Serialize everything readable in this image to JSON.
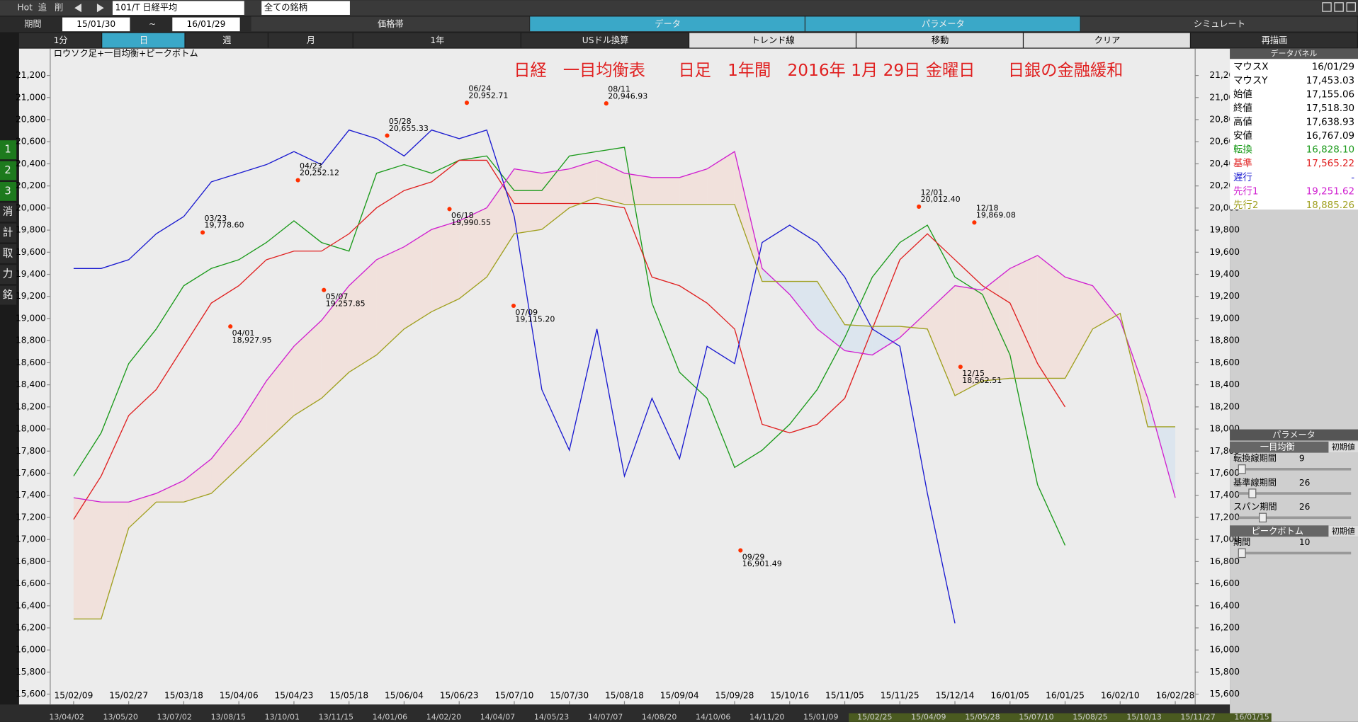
{
  "toolbar": {
    "hot": "Hot",
    "add": "追",
    "del": "削",
    "code": "101/T 日経平均",
    "group": "全ての銘柄",
    "period_label": "期間",
    "from": "15/01/30",
    "tilde": "~",
    "to": "16/01/29",
    "tabs": [
      "価格帯",
      "データ",
      "パラメータ",
      "シミュレート"
    ],
    "modes": [
      "1分",
      "日",
      "週",
      "月",
      "1年",
      "USドル換算",
      "トレンド線",
      "移動",
      "クリア",
      "再描画"
    ]
  },
  "side_tools": [
    "1",
    "2",
    "3",
    "消",
    "計",
    "取",
    "力",
    "銘"
  ],
  "chart_data": {
    "type": "line",
    "title": "日経　一目均衡表　　日足　1年間　2016年 1月 29日 金曜日　　日銀の金融緩和",
    "subtitle": "ロウソク足+一目均衡+ピークボトム",
    "categories": [
      "15/02/09",
      null,
      "15/02/27",
      null,
      "15/03/18",
      null,
      "15/04/06",
      null,
      "15/04/23",
      null,
      "15/05/18",
      null,
      "15/06/04",
      null,
      "15/06/23",
      null,
      "15/07/10",
      null,
      "15/07/30",
      null,
      "15/08/18",
      null,
      "15/09/04",
      null,
      "15/09/28",
      null,
      "15/10/16",
      null,
      "15/11/05",
      null,
      "15/11/25",
      null,
      "15/12/14",
      null,
      "16/01/05",
      null,
      "16/01/25",
      null,
      "16/02/10",
      null,
      "16/02/28"
    ],
    "ylim": [
      15506,
      21443
    ],
    "yticks": [
      {
        "value": 15600,
        "label": "15,600"
      },
      {
        "value": 15800,
        "label": "15,800"
      },
      {
        "value": 16000,
        "label": "16,000"
      },
      {
        "value": 16200,
        "label": "16,200"
      },
      {
        "value": 16400,
        "label": "16,400"
      },
      {
        "value": 16600,
        "label": "16,600"
      },
      {
        "value": 16800,
        "label": "16,800"
      },
      {
        "value": 17000,
        "label": "17,000"
      },
      {
        "value": 17200,
        "label": "17,200"
      },
      {
        "value": 17400,
        "label": "17,400"
      },
      {
        "value": 17600,
        "label": "17,600"
      },
      {
        "value": 17800,
        "label": "17,800"
      },
      {
        "value": 18000,
        "label": "18,000"
      },
      {
        "value": 18200,
        "label": "18,200"
      },
      {
        "value": 18400,
        "label": "18,400"
      },
      {
        "value": 18600,
        "label": "18,600"
      },
      {
        "value": 18800,
        "label": "18,800"
      },
      {
        "value": 19000,
        "label": "19,000"
      },
      {
        "value": 19200,
        "label": "19,200"
      },
      {
        "value": 19400,
        "label": "19,400"
      },
      {
        "value": 19600,
        "label": "19,600"
      },
      {
        "value": 19800,
        "label": "19,800"
      },
      {
        "value": 20000,
        "label": "20,000"
      },
      {
        "value": 20200,
        "label": "20,200"
      },
      {
        "value": 20400,
        "label": "20,400"
      },
      {
        "value": 20600,
        "label": "20,600"
      },
      {
        "value": 20800,
        "label": "20,800"
      },
      {
        "value": 21000,
        "label": "21,000"
      },
      {
        "value": 21200,
        "label": "21,200"
      }
    ],
    "series": [
      {
        "name": "転換",
        "color": "#1a9a1a",
        "values": [
          17574,
          17965,
          18592,
          18905,
          19297,
          19453,
          19532,
          19688,
          19884,
          19688,
          19610,
          20315,
          20393,
          20315,
          20432,
          20471,
          20158,
          20158,
          20471,
          20511,
          20550,
          19140,
          18514,
          18278,
          17652,
          17808,
          18043,
          18357,
          18827,
          19375,
          19688,
          19845,
          19375,
          19218,
          18670,
          17495,
          16947,
          null,
          null,
          null,
          null
        ]
      },
      {
        "name": "基準",
        "color": "#e02020",
        "values": [
          17182,
          17574,
          18122,
          18357,
          18749,
          19140,
          19297,
          19532,
          19610,
          19610,
          19767,
          20002,
          20158,
          20237,
          20432,
          20432,
          20041,
          20041,
          20041,
          20041,
          20002,
          19375,
          19297,
          19140,
          18905,
          18043,
          17965,
          18043,
          18278,
          18905,
          19532,
          19767,
          19532,
          19297,
          19140,
          18592,
          18200,
          null,
          null,
          null,
          null
        ]
      },
      {
        "name": "遅行",
        "color": "#1a1ad0",
        "values": [
          19453,
          19453,
          19532,
          19767,
          19923,
          20237,
          20315,
          20393,
          20511,
          20393,
          20706,
          20628,
          20471,
          20706,
          20628,
          20706,
          19923,
          18357,
          17808,
          18905,
          17574,
          18278,
          17730,
          18749,
          18592,
          19688,
          19845,
          19688,
          19375,
          18905,
          18749,
          17417,
          16242,
          null,
          null,
          null,
          null,
          null,
          null,
          null,
          null
        ]
      },
      {
        "name": "先行1",
        "color": "#d020d0",
        "values": [
          17378,
          17339,
          17339,
          17417,
          17534,
          17730,
          18043,
          18435,
          18749,
          18983,
          19297,
          19532,
          19649,
          19806,
          19884,
          20002,
          20354,
          20315,
          20354,
          20432,
          20315,
          20276,
          20276,
          20354,
          20511,
          19453,
          19218,
          18905,
          18709,
          18670,
          18827,
          19062,
          19297,
          19257,
          19453,
          19571,
          19375,
          19297,
          18983,
          18278,
          17378
        ]
      },
      {
        "name": "先行2",
        "color": "#a0a020",
        "values": [
          16281,
          16281,
          17104,
          17339,
          17339,
          17417,
          17652,
          17887,
          18122,
          18278,
          18514,
          18670,
          18905,
          19062,
          19179,
          19375,
          19767,
          19806,
          20002,
          20096,
          20033,
          20033,
          20033,
          20033,
          20033,
          19336,
          19336,
          19336,
          18944,
          18929,
          18929,
          18905,
          18302,
          18435,
          18459,
          18459,
          18459,
          18905,
          19047,
          18020,
          18020
        ]
      }
    ],
    "annotations": [
      {
        "date": "03/23",
        "value": 19778.6,
        "label": "19,778.60"
      },
      {
        "date": "04/01",
        "value": 18927.95,
        "label": "18,927.95"
      },
      {
        "date": "04/23",
        "value": 20252.12,
        "label": "20,252.12"
      },
      {
        "date": "05/07",
        "value": 19257.85,
        "label": "19,257.85"
      },
      {
        "date": "05/28",
        "value": 20655.33,
        "label": "20,655.33"
      },
      {
        "date": "06/18",
        "value": 19990.55,
        "label": "19,990.55"
      },
      {
        "date": "06/24",
        "value": 20952.71,
        "label": "20,952.71"
      },
      {
        "date": "07/09",
        "value": 19115.2,
        "label": "19,115.20"
      },
      {
        "date": "08/11",
        "value": 20946.93,
        "label": "20,946.93"
      },
      {
        "date": "09/29",
        "value": 16901.49,
        "label": "16,901.49"
      },
      {
        "date": "12/01",
        "value": 20012.4,
        "label": "20,012.40"
      },
      {
        "date": "12/18",
        "value": 19869.08,
        "label": "19,869.08"
      },
      {
        "date": "12/15",
        "value": 18562.51,
        "label": "18,562.51"
      }
    ]
  },
  "data_panel": {
    "title": "データパネル",
    "rows": [
      {
        "label": "マウスX",
        "value": "16/01/29"
      },
      {
        "label": "マウスY",
        "value": "17,453.03"
      },
      {
        "label": "始値",
        "value": "17,155.06"
      },
      {
        "label": "終値",
        "value": "17,518.30"
      },
      {
        "label": "高値",
        "value": "17,638.93"
      },
      {
        "label": "安値",
        "value": "16,767.09"
      }
    ],
    "indicator_values": [
      "16,828.10",
      "17,565.22",
      "-",
      "19,251.62",
      "18,885.26"
    ]
  },
  "parameter_panel": {
    "title": "パラメータ",
    "group1": "一目均衡",
    "reset1": "初期値",
    "params1": [
      {
        "label": "転換線期間",
        "value": "9"
      },
      {
        "label": "基準線期間",
        "value": "26"
      },
      {
        "label": "スパン期間",
        "value": "26"
      }
    ],
    "group2": "ピークボトム",
    "reset2": "初期値",
    "params2": [
      {
        "label": "期間",
        "value": "10"
      }
    ]
  },
  "scroll_dates": [
    "13/04/02",
    "13/05/20",
    "13/07/02",
    "13/08/15",
    "13/10/01",
    "13/11/15",
    "14/01/06",
    "14/02/20",
    "14/04/07",
    "14/05/23",
    "14/07/07",
    "14/08/20",
    "14/10/06",
    "14/11/20",
    "15/01/09",
    "15/02/25",
    "15/04/09",
    "15/05/28",
    "15/07/10",
    "15/08/25",
    "15/10/13",
    "15/11/27",
    "16/01/15"
  ]
}
